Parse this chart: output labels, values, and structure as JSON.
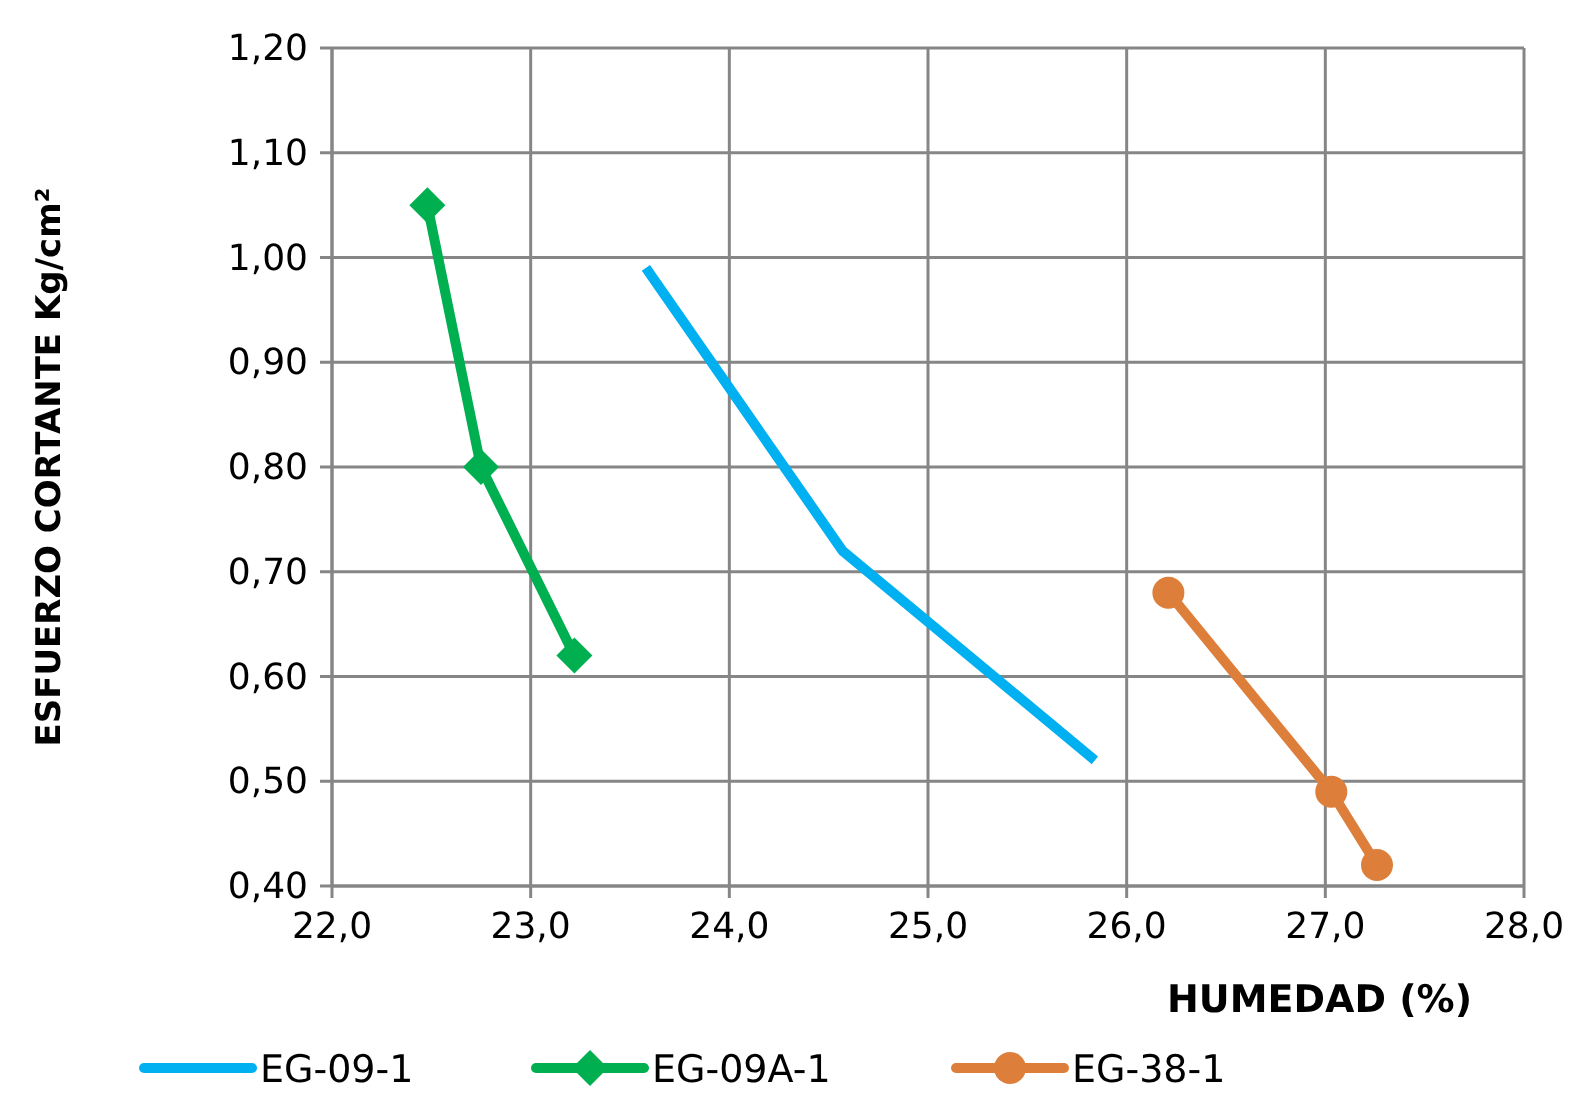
{
  "chart_data": {
    "type": "line",
    "xlabel": "HUMEDAD (%)",
    "ylabel": "ESFUERZO CORTANTE Kg/cm²",
    "xlim": [
      22,
      28
    ],
    "xticks": [
      {
        "value": 22,
        "label": "22,0"
      },
      {
        "value": 23,
        "label": "23,0"
      },
      {
        "value": 24,
        "label": "24,0"
      },
      {
        "value": 25,
        "label": "25,0"
      },
      {
        "value": 26,
        "label": "26,0"
      },
      {
        "value": 27,
        "label": "27,0"
      },
      {
        "value": 28,
        "label": "28,0"
      }
    ],
    "ylim": [
      0.4,
      1.2
    ],
    "yticks": [
      {
        "value": 0.4,
        "label": "0,40"
      },
      {
        "value": 0.5,
        "label": "0,50"
      },
      {
        "value": 0.6,
        "label": "0,60"
      },
      {
        "value": 0.7,
        "label": "0,70"
      },
      {
        "value": 0.8,
        "label": "0,80"
      },
      {
        "value": 0.9,
        "label": "0,90"
      },
      {
        "value": 1.0,
        "label": "1,00"
      },
      {
        "value": 1.1,
        "label": "1,10"
      },
      {
        "value": 1.2,
        "label": "1,20"
      }
    ],
    "grid": true,
    "legend": "bottom",
    "line_style": "solid",
    "series": [
      {
        "name": "EG-09-1",
        "color": "#00b0f0",
        "marker": "none",
        "x": [
          23.58,
          24.57,
          25.84
        ],
        "values": [
          0.99,
          0.72,
          0.52
        ]
      },
      {
        "name": "EG-09A-1",
        "color": "#00b050",
        "marker": "diamond",
        "x": [
          22.48,
          22.75,
          23.22
        ],
        "values": [
          1.05,
          0.8,
          0.62
        ]
      },
      {
        "name": "EG-38-1",
        "color": "#dd7f3a",
        "marker": "circle",
        "x": [
          26.21,
          27.03,
          27.26
        ],
        "values": [
          0.68,
          0.49,
          0.42
        ]
      }
    ]
  }
}
